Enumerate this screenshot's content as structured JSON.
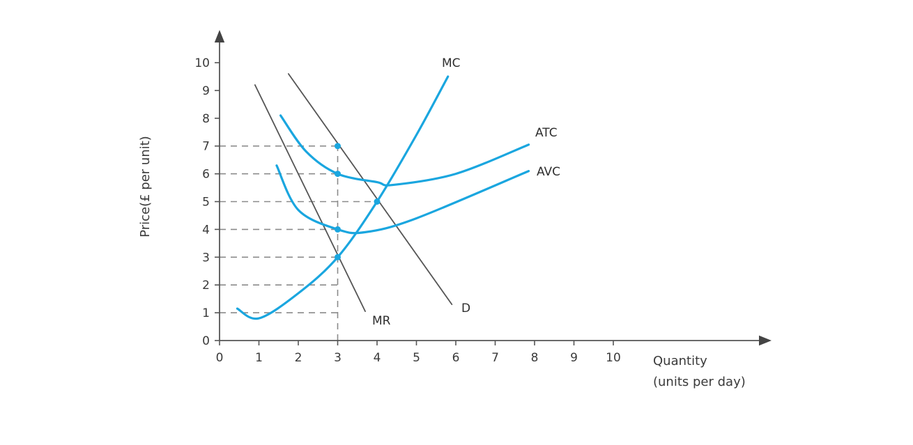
{
  "chart_data": {
    "type": "line",
    "title": "",
    "xlabel": "Quantity (units per day)",
    "xlabel_lines": [
      "Quantity",
      "(units per day)"
    ],
    "ylabel": "Price(£ per unit)",
    "xlim": [
      0,
      10
    ],
    "ylim": [
      0,
      10
    ],
    "x_ticks": [
      "0",
      "1",
      "2",
      "3",
      "4",
      "5",
      "6",
      "7",
      "8",
      "9",
      "10"
    ],
    "y_ticks": [
      "0",
      "1",
      "2",
      "3",
      "4",
      "5",
      "6",
      "7",
      "8",
      "9",
      "10"
    ],
    "grid": false,
    "legend": "none (curves labelled directly)",
    "series": [
      {
        "name": "MR",
        "color": "#555555",
        "style": "straight line",
        "points": [
          [
            0.9,
            9.2
          ],
          [
            3.7,
            1.05
          ]
        ]
      },
      {
        "name": "D",
        "color": "#555555",
        "style": "straight line",
        "points": [
          [
            1.75,
            9.6
          ],
          [
            5.9,
            1.3
          ]
        ]
      },
      {
        "name": "MC",
        "color": "#1aa6df",
        "style": "curve",
        "points": [
          [
            0.45,
            1.15
          ],
          [
            1.0,
            0.8
          ],
          [
            2.0,
            1.7
          ],
          [
            3.0,
            3.0
          ],
          [
            4.0,
            5.0
          ],
          [
            5.0,
            7.4
          ],
          [
            5.8,
            9.5
          ]
        ]
      },
      {
        "name": "ATC",
        "color": "#1aa6df",
        "style": "U-shaped curve",
        "points": [
          [
            1.55,
            8.1
          ],
          [
            2.2,
            6.8
          ],
          [
            3.0,
            6.0
          ],
          [
            4.0,
            5.7
          ],
          [
            4.4,
            5.6
          ],
          [
            6.0,
            6.0
          ],
          [
            7.85,
            7.05
          ]
        ]
      },
      {
        "name": "AVC",
        "color": "#1aa6df",
        "style": "U-shaped curve",
        "points": [
          [
            1.45,
            6.3
          ],
          [
            2.0,
            4.7
          ],
          [
            3.0,
            4.0
          ],
          [
            3.7,
            3.9
          ],
          [
            5.0,
            4.4
          ],
          [
            7.85,
            6.1
          ]
        ]
      }
    ],
    "reference_lines": {
      "horizontal_dashed_at_y": [
        1,
        2,
        3,
        4,
        5,
        6,
        7
      ],
      "horizontal_dashed_end_x": {
        "1": 3,
        "2": 3,
        "3": 3,
        "4": 3,
        "5": 4,
        "6": 3,
        "7": 3
      },
      "vertical_dashed_at_x": 3,
      "vertical_dashed_range_y": [
        0,
        7
      ]
    },
    "marked_points": [
      {
        "x": 3,
        "y": 7,
        "on": "D"
      },
      {
        "x": 3,
        "y": 6,
        "on": "ATC"
      },
      {
        "x": 3,
        "y": 4,
        "on": "AVC"
      },
      {
        "x": 3,
        "y": 3,
        "on": "MC = MR"
      },
      {
        "x": 4,
        "y": 5,
        "on": "MC = D"
      }
    ]
  },
  "labels": {
    "y_axis_title": "Price(£ per unit)",
    "x_axis_title_line1": "Quantity",
    "x_axis_title_line2": "(units per day)",
    "mr": "MR",
    "d": "D",
    "mc": "MC",
    "atc": "ATC",
    "avc": "AVC"
  },
  "colors": {
    "curve": "#1aa6df",
    "line": "#555555",
    "axis": "#555555",
    "dash": "#8a8a8a"
  }
}
